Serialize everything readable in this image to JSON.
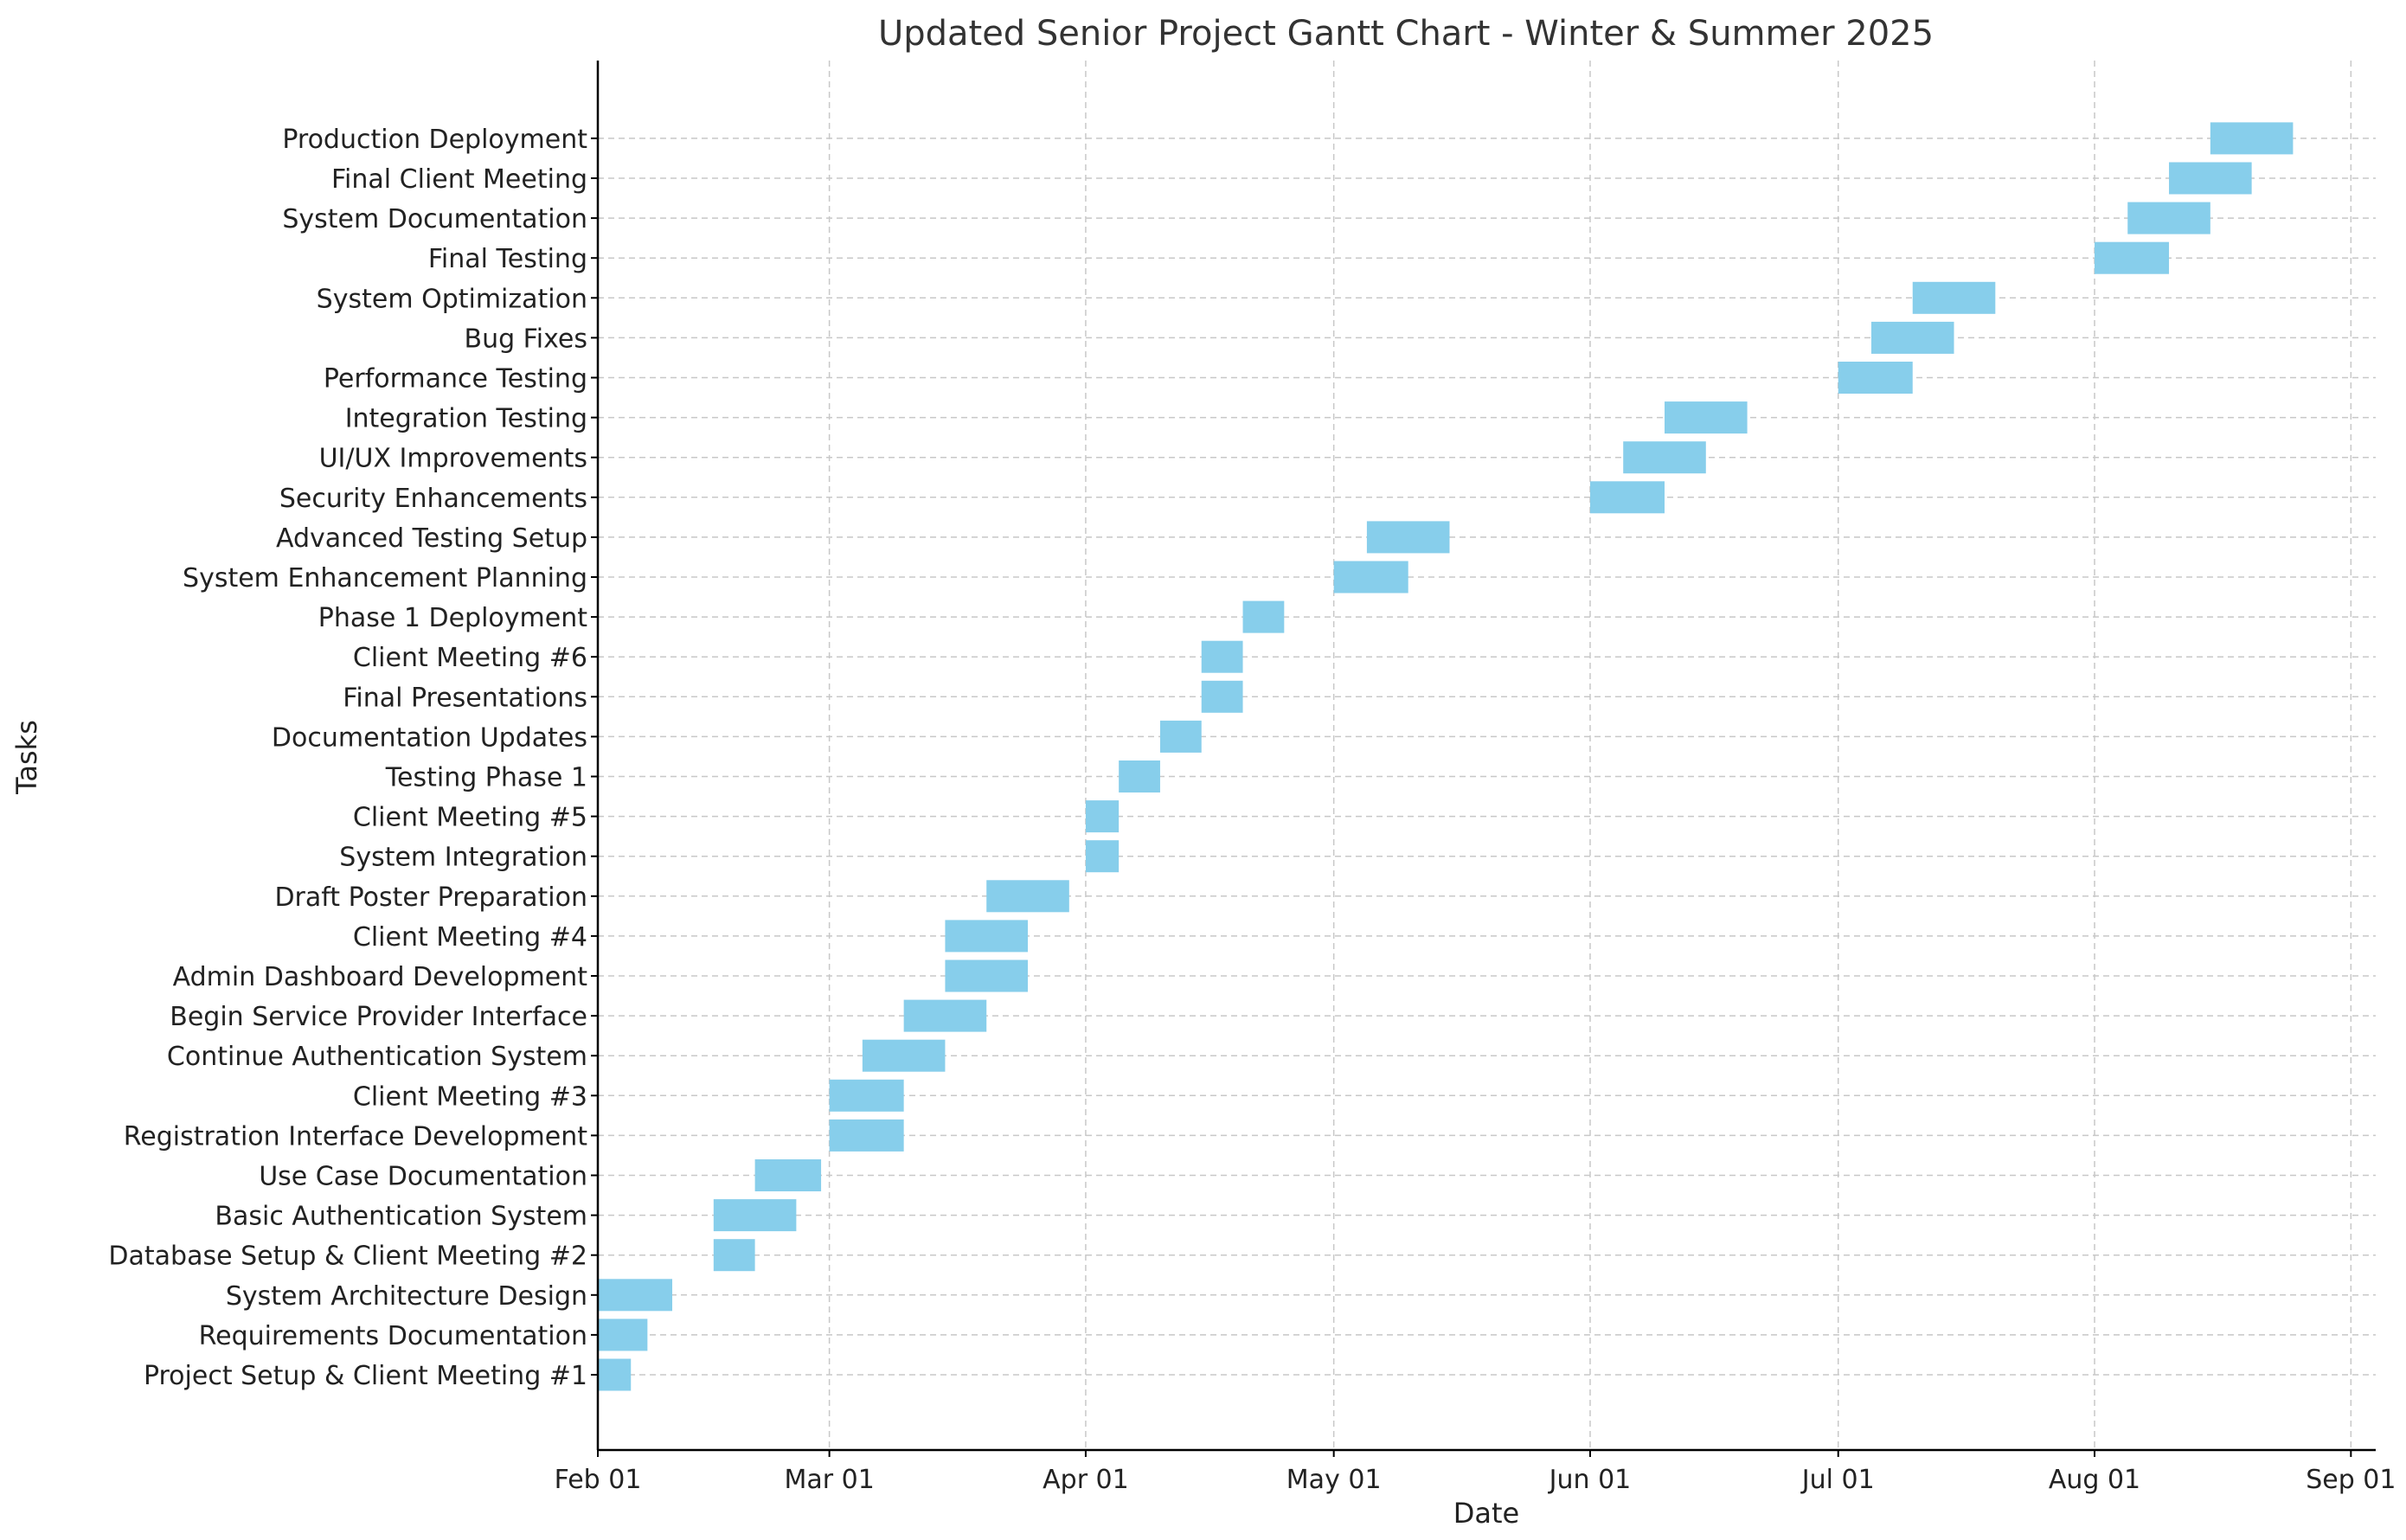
{
  "chart_data": {
    "type": "gantt",
    "title": "Updated Senior Project Gantt Chart - Winter & Summer 2025",
    "xlabel": "Date",
    "ylabel": "Tasks",
    "x_range": [
      "2025-02-01",
      "2025-09-04"
    ],
    "x_ticks": [
      {
        "date": "2025-02-01",
        "label": "Feb 01"
      },
      {
        "date": "2025-03-01",
        "label": "Mar 01"
      },
      {
        "date": "2025-04-01",
        "label": "Apr 01"
      },
      {
        "date": "2025-05-01",
        "label": "May 01"
      },
      {
        "date": "2025-06-01",
        "label": "Jun 01"
      },
      {
        "date": "2025-07-01",
        "label": "Jul 01"
      },
      {
        "date": "2025-08-01",
        "label": "Aug 01"
      },
      {
        "date": "2025-09-01",
        "label": "Sep 01"
      }
    ],
    "grid": true,
    "bar_color": "#87ceeb",
    "tasks": [
      {
        "name": "Project Setup & Client Meeting #1",
        "start": "2025-02-01",
        "end": "2025-02-05"
      },
      {
        "name": "Requirements Documentation",
        "start": "2025-02-01",
        "end": "2025-02-07"
      },
      {
        "name": "System Architecture Design",
        "start": "2025-02-01",
        "end": "2025-02-10"
      },
      {
        "name": "Database Setup & Client Meeting #2",
        "start": "2025-02-15",
        "end": "2025-02-20"
      },
      {
        "name": "Basic Authentication System",
        "start": "2025-02-15",
        "end": "2025-02-25"
      },
      {
        "name": "Use Case Documentation",
        "start": "2025-02-20",
        "end": "2025-02-28"
      },
      {
        "name": "Registration Interface Development",
        "start": "2025-03-01",
        "end": "2025-03-10"
      },
      {
        "name": "Client Meeting #3",
        "start": "2025-03-01",
        "end": "2025-03-10"
      },
      {
        "name": "Continue Authentication System",
        "start": "2025-03-05",
        "end": "2025-03-15"
      },
      {
        "name": "Begin Service Provider Interface",
        "start": "2025-03-10",
        "end": "2025-03-20"
      },
      {
        "name": "Admin Dashboard Development",
        "start": "2025-03-15",
        "end": "2025-03-25"
      },
      {
        "name": "Client Meeting #4",
        "start": "2025-03-15",
        "end": "2025-03-25"
      },
      {
        "name": "Draft Poster Preparation",
        "start": "2025-03-20",
        "end": "2025-03-30"
      },
      {
        "name": "System Integration",
        "start": "2025-04-01",
        "end": "2025-04-05"
      },
      {
        "name": "Client Meeting #5",
        "start": "2025-04-01",
        "end": "2025-04-05"
      },
      {
        "name": "Testing Phase 1",
        "start": "2025-04-05",
        "end": "2025-04-10"
      },
      {
        "name": "Documentation Updates",
        "start": "2025-04-10",
        "end": "2025-04-15"
      },
      {
        "name": "Final Presentations",
        "start": "2025-04-15",
        "end": "2025-04-20"
      },
      {
        "name": "Client Meeting #6",
        "start": "2025-04-15",
        "end": "2025-04-20"
      },
      {
        "name": "Phase 1 Deployment",
        "start": "2025-04-20",
        "end": "2025-04-25"
      },
      {
        "name": "System Enhancement Planning",
        "start": "2025-05-01",
        "end": "2025-05-10"
      },
      {
        "name": "Advanced Testing Setup",
        "start": "2025-05-05",
        "end": "2025-05-15"
      },
      {
        "name": "Security Enhancements",
        "start": "2025-06-01",
        "end": "2025-06-10"
      },
      {
        "name": "UI/UX Improvements",
        "start": "2025-06-05",
        "end": "2025-06-15"
      },
      {
        "name": "Integration Testing",
        "start": "2025-06-10",
        "end": "2025-06-20"
      },
      {
        "name": "Performance Testing",
        "start": "2025-07-01",
        "end": "2025-07-10"
      },
      {
        "name": "Bug Fixes",
        "start": "2025-07-05",
        "end": "2025-07-15"
      },
      {
        "name": "System Optimization",
        "start": "2025-07-10",
        "end": "2025-07-20"
      },
      {
        "name": "Final Testing",
        "start": "2025-08-01",
        "end": "2025-08-10"
      },
      {
        "name": "System Documentation",
        "start": "2025-08-05",
        "end": "2025-08-15"
      },
      {
        "name": "Final Client Meeting",
        "start": "2025-08-10",
        "end": "2025-08-20"
      },
      {
        "name": "Production Deployment",
        "start": "2025-08-15",
        "end": "2025-08-25"
      }
    ]
  }
}
